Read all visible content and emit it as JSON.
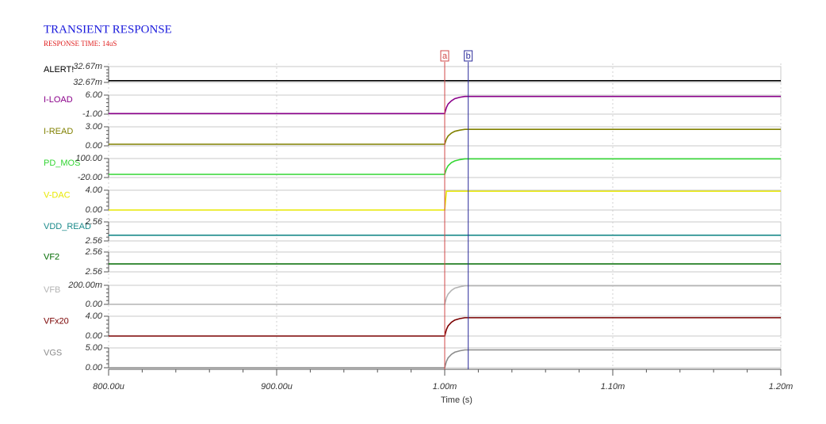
{
  "chart_data": {
    "type": "line",
    "title": "TRANSIENT RESPONSE",
    "subtitle": "RESPONSE TIME: 14uS",
    "xlabel": "Time (s)",
    "xlim": [
      0.0008,
      0.0012
    ],
    "xticks": [
      {
        "value": 0.0008,
        "label": "800.00u"
      },
      {
        "value": 0.0009,
        "label": "900.00u"
      },
      {
        "value": 0.001,
        "label": "1.00m"
      },
      {
        "value": 0.0011,
        "label": "1.10m"
      },
      {
        "value": 0.0012,
        "label": "1.20m"
      }
    ],
    "grid": true,
    "cursors": [
      {
        "name": "a",
        "color": "#d04848",
        "x": 0.001
      },
      {
        "name": "b",
        "color": "#2a2a9a",
        "x": 0.001014
      }
    ],
    "x": [
      0.0008,
      0.001,
      0.001001,
      0.001002,
      0.001004,
      0.001006,
      0.001009,
      0.001012,
      0.0012
    ],
    "panels": [
      {
        "name": "ALERT!",
        "color": "#000000",
        "ylim": [
          0.032665,
          0.032674
        ],
        "yticks": [
          {
            "value": 0.032665,
            "label": "32.67m"
          },
          {
            "value": 0.032674,
            "label": "32.67m"
          }
        ],
        "values": [
          0.032666,
          0.032666,
          0.032666,
          0.032666,
          0.032666,
          0.032666,
          0.032666,
          0.032666,
          0.032666
        ]
      },
      {
        "name": "I-LOAD",
        "color": "#8a008a",
        "ylim": [
          -1,
          6
        ],
        "yticks": [
          {
            "value": -1,
            "label": "-1.00"
          },
          {
            "value": 6,
            "label": "6.00"
          }
        ],
        "values": [
          -0.8,
          -0.8,
          1.4,
          2.7,
          3.9,
          4.7,
          5.2,
          5.5,
          5.5
        ]
      },
      {
        "name": "I-READ",
        "color": "#808000",
        "ylim": [
          0,
          3
        ],
        "yticks": [
          {
            "value": 0,
            "label": "0.00"
          },
          {
            "value": 3,
            "label": "3.00"
          }
        ],
        "values": [
          0.25,
          0.25,
          1.07,
          1.54,
          2.01,
          2.29,
          2.48,
          2.6,
          2.6
        ]
      },
      {
        "name": "PD_MOS",
        "color": "#33d633",
        "ylim": [
          -20,
          100
        ],
        "yticks": [
          {
            "value": -20,
            "label": "-20.00"
          },
          {
            "value": 100,
            "label": "100.00"
          }
        ],
        "values": [
          0,
          0,
          34,
          54,
          74,
          85,
          93,
          98,
          98
        ]
      },
      {
        "name": "V-DAC",
        "color": "#e8e800",
        "ylim": [
          0,
          4
        ],
        "yticks": [
          {
            "value": 0,
            "label": "0.00"
          },
          {
            "value": 4,
            "label": "4.00"
          }
        ],
        "values": [
          0,
          0,
          3.8,
          3.8,
          3.8,
          3.8,
          3.8,
          3.8,
          3.8
        ]
      },
      {
        "name": "VDD_READ",
        "color": "#1a8a8a",
        "ylim": [
          2.555,
          2.565
        ],
        "yticks": [
          {
            "value": 2.555,
            "label": "2.56"
          },
          {
            "value": 2.565,
            "label": "2.56"
          }
        ],
        "values": [
          2.558,
          2.558,
          2.558,
          2.558,
          2.558,
          2.558,
          2.558,
          2.558,
          2.558
        ]
      },
      {
        "name": "VF2",
        "color": "#006a00",
        "ylim": [
          2.555,
          2.565
        ],
        "yticks": [
          {
            "value": 2.555,
            "label": "2.56"
          },
          {
            "value": 2.565,
            "label": "2.56"
          }
        ],
        "values": [
          2.559,
          2.559,
          2.559,
          2.559,
          2.559,
          2.559,
          2.559,
          2.559,
          2.559
        ]
      },
      {
        "name": "VFB",
        "color": "#b4b4b4",
        "ylim": [
          0,
          200
        ],
        "yticks": [
          {
            "value": 0,
            "label": "0.00"
          },
          {
            "value": 200,
            "label": "200.00m"
          }
        ],
        "values": [
          0,
          0,
          68,
          107,
          146,
          170,
          185,
          195,
          195
        ]
      },
      {
        "name": "VFx20",
        "color": "#7a0000",
        "ylim": [
          0,
          4
        ],
        "yticks": [
          {
            "value": 0,
            "label": "0.00"
          },
          {
            "value": 4,
            "label": "4.00"
          }
        ],
        "values": [
          0,
          0,
          1.3,
          2.04,
          2.78,
          3.22,
          3.52,
          3.7,
          3.7
        ]
      },
      {
        "name": "VGS",
        "color": "#8c8c8c",
        "ylim": [
          0,
          5
        ],
        "yticks": [
          {
            "value": 0,
            "label": "0.00"
          },
          {
            "value": 5,
            "label": "5.00"
          }
        ],
        "values": [
          0,
          0,
          1.58,
          2.48,
          3.38,
          3.92,
          4.28,
          4.5,
          4.5
        ]
      }
    ]
  }
}
